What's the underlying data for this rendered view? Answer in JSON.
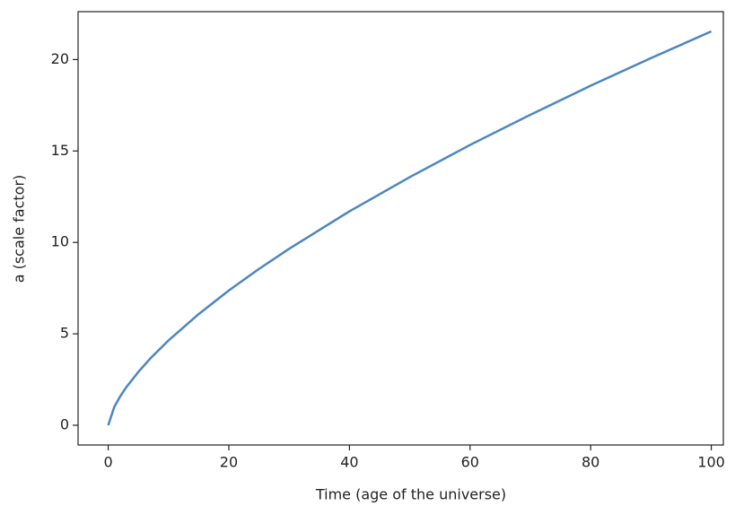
{
  "chart_data": {
    "type": "line",
    "xlabel": "Time (age of the universe)",
    "ylabel": "a (scale factor)",
    "x": [
      0,
      1,
      2,
      3,
      5,
      7,
      10,
      15,
      20,
      25,
      30,
      40,
      50,
      60,
      70,
      80,
      90,
      100
    ],
    "series": [
      {
        "color": "#4c85c0",
        "values": [
          0,
          1,
          1.59,
          2.08,
          2.92,
          3.66,
          4.64,
          6.08,
          7.37,
          8.55,
          9.65,
          11.7,
          13.57,
          15.33,
          16.98,
          18.57,
          20.08,
          21.54
        ]
      }
    ],
    "xlim": [
      -5,
      102
    ],
    "ylim": [
      -1.08,
      22.62
    ],
    "xticks": [
      0,
      20,
      40,
      60,
      80,
      100
    ],
    "yticks": [
      0,
      5,
      10,
      15,
      20
    ],
    "grid": false
  }
}
